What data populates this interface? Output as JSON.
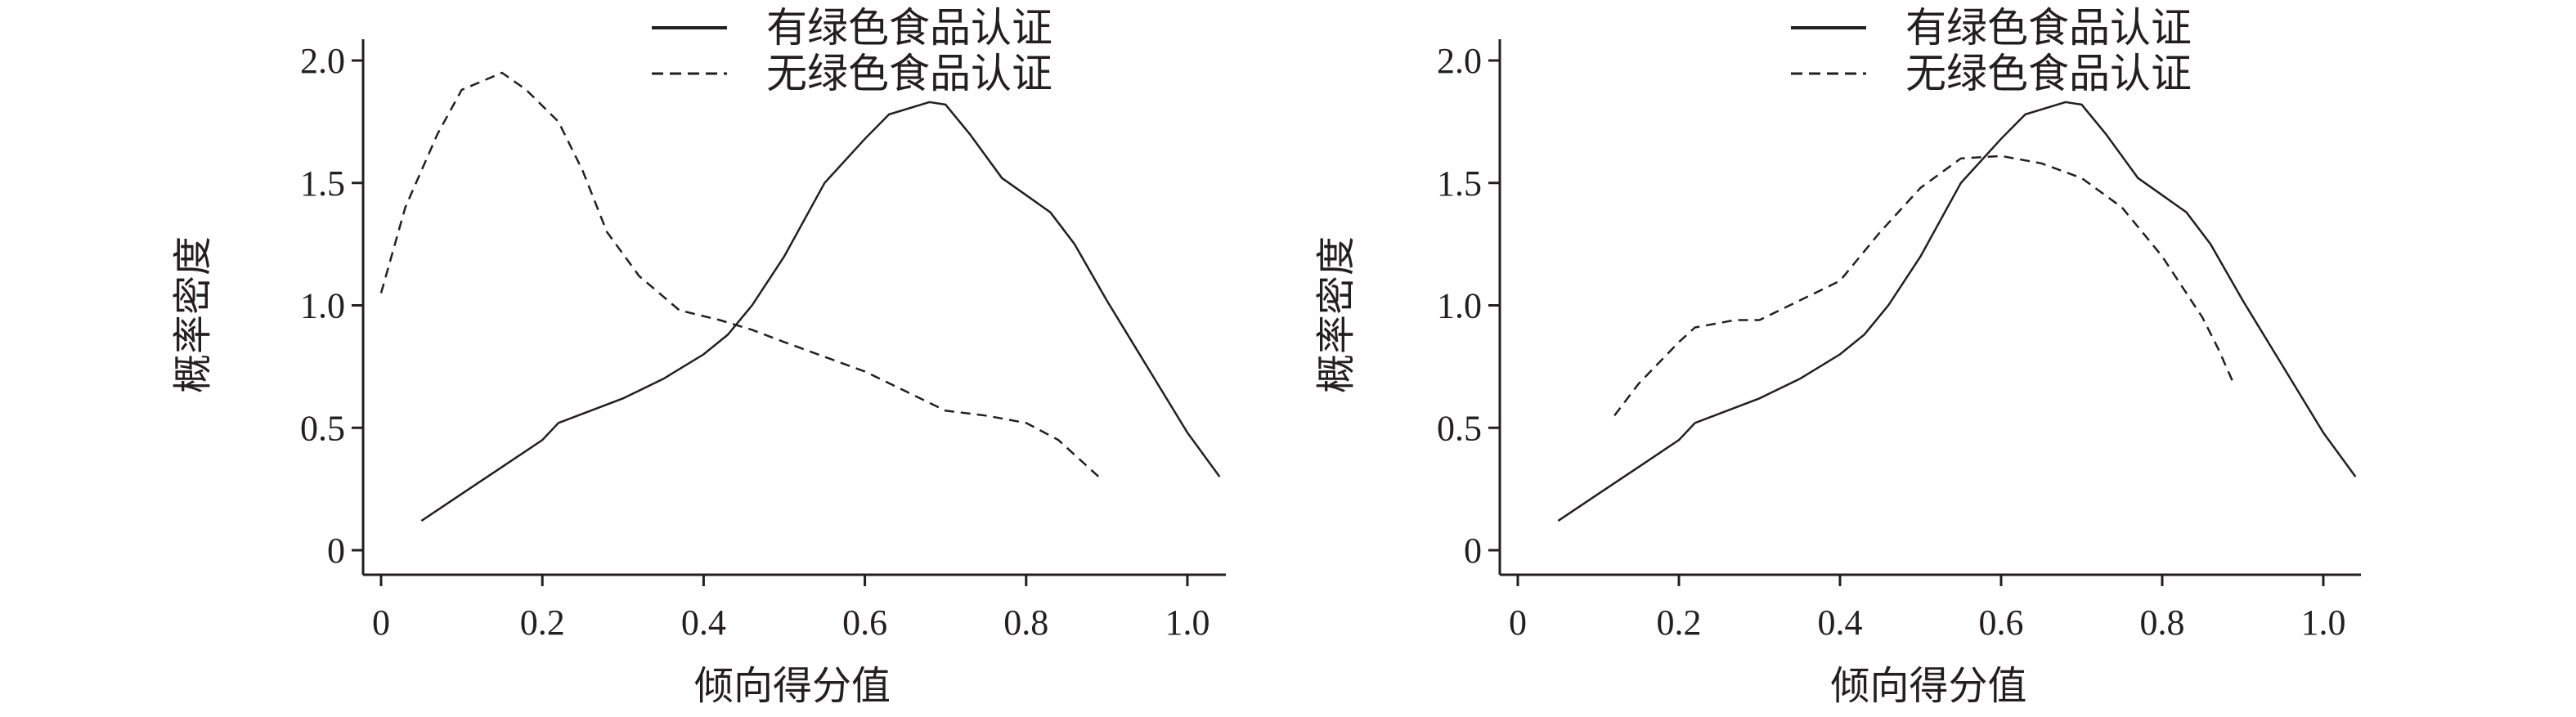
{
  "colors": {
    "line": "#231f20",
    "background": "#ffffff"
  },
  "chart_data": [
    {
      "type": "line",
      "xlabel": "倾向得分值",
      "ylabel": "概率密度",
      "xlim": [
        0,
        1.05
      ],
      "ylim": [
        0,
        2.0
      ],
      "xticks": [
        "0",
        "0.2",
        "0.4",
        "0.6",
        "0.8",
        "1.0"
      ],
      "yticks": [
        "0",
        "0.5",
        "1.0",
        "1.5",
        "2.0"
      ],
      "grid": false,
      "legend_position": "top-center",
      "series": [
        {
          "name": "有绿色食品认证",
          "style": "solid",
          "x": [
            0.05,
            0.1,
            0.15,
            0.2,
            0.22,
            0.3,
            0.35,
            0.4,
            0.43,
            0.46,
            0.5,
            0.55,
            0.6,
            0.63,
            0.68,
            0.7,
            0.73,
            0.77,
            0.8,
            0.83,
            0.86,
            0.9,
            0.95,
            1.0,
            1.04
          ],
          "y": [
            0.12,
            0.23,
            0.34,
            0.45,
            0.52,
            0.62,
            0.7,
            0.8,
            0.88,
            1.0,
            1.2,
            1.5,
            1.68,
            1.78,
            1.83,
            1.82,
            1.7,
            1.52,
            1.45,
            1.38,
            1.25,
            1.02,
            0.75,
            0.48,
            0.3
          ]
        },
        {
          "name": "无绿色食品认证",
          "style": "dashed",
          "x": [
            0,
            0.03,
            0.07,
            0.1,
            0.15,
            0.18,
            0.22,
            0.25,
            0.28,
            0.32,
            0.37,
            0.42,
            0.46,
            0.5,
            0.55,
            0.6,
            0.65,
            0.7,
            0.75,
            0.8,
            0.84,
            0.89
          ],
          "y": [
            1.05,
            1.4,
            1.7,
            1.88,
            1.95,
            1.88,
            1.75,
            1.55,
            1.3,
            1.12,
            0.98,
            0.94,
            0.9,
            0.85,
            0.79,
            0.73,
            0.65,
            0.57,
            0.55,
            0.52,
            0.45,
            0.3
          ]
        }
      ]
    },
    {
      "type": "line",
      "xlabel": "倾向得分值",
      "ylabel": "概率密度",
      "xlim": [
        0,
        1.05
      ],
      "ylim": [
        0,
        2.0
      ],
      "xticks": [
        "0",
        "0.2",
        "0.4",
        "0.6",
        "0.8",
        "1.0"
      ],
      "yticks": [
        "0",
        "0.5",
        "1.0",
        "1.5",
        "2.0"
      ],
      "grid": false,
      "legend_position": "top-center",
      "series": [
        {
          "name": "有绿色食品认证",
          "style": "solid",
          "x": [
            0.05,
            0.1,
            0.15,
            0.2,
            0.22,
            0.3,
            0.35,
            0.4,
            0.43,
            0.46,
            0.5,
            0.55,
            0.6,
            0.63,
            0.68,
            0.7,
            0.73,
            0.77,
            0.8,
            0.83,
            0.86,
            0.9,
            0.95,
            1.0,
            1.04
          ],
          "y": [
            0.12,
            0.23,
            0.34,
            0.45,
            0.52,
            0.62,
            0.7,
            0.8,
            0.88,
            1.0,
            1.2,
            1.5,
            1.68,
            1.78,
            1.83,
            1.82,
            1.7,
            1.52,
            1.45,
            1.38,
            1.25,
            1.02,
            0.75,
            0.48,
            0.3
          ]
        },
        {
          "name": "无绿色食品认证",
          "style": "dashed",
          "x": [
            0.12,
            0.15,
            0.2,
            0.22,
            0.27,
            0.3,
            0.35,
            0.4,
            0.45,
            0.5,
            0.55,
            0.6,
            0.65,
            0.7,
            0.75,
            0.8,
            0.85,
            0.87,
            0.89
          ],
          "y": [
            0.55,
            0.68,
            0.85,
            0.91,
            0.94,
            0.94,
            1.02,
            1.1,
            1.3,
            1.48,
            1.6,
            1.61,
            1.58,
            1.52,
            1.4,
            1.2,
            0.95,
            0.82,
            0.67
          ]
        }
      ]
    }
  ]
}
